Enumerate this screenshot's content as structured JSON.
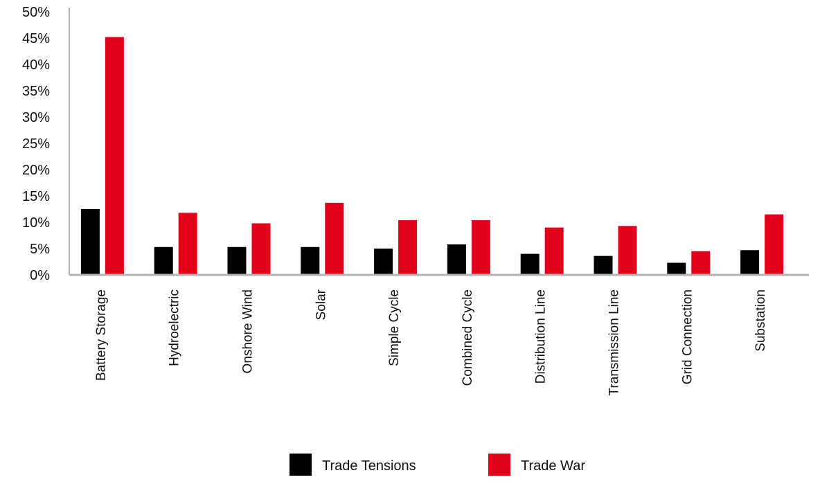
{
  "chart_data": {
    "type": "bar",
    "categories": [
      "Battery Storage",
      "Hydroelectric",
      "Onshore Wind",
      "Solar",
      "Simple Cycle",
      "Combined Cycle",
      "Distribution Line",
      "Transmission Line",
      "Grid Connection",
      "Substation"
    ],
    "series": [
      {
        "name": "Trade Tensions",
        "color": "#000000",
        "values": [
          12.5,
          5.3,
          5.3,
          5.3,
          5.0,
          5.8,
          4.0,
          3.6,
          2.3,
          4.7
        ]
      },
      {
        "name": "Trade War",
        "color": "#e3001b",
        "values": [
          45.2,
          11.8,
          9.8,
          13.7,
          10.4,
          10.4,
          9.0,
          9.3,
          4.5,
          11.5
        ]
      }
    ],
    "ylim": [
      0,
      50
    ],
    "yticks": [
      "0%",
      "5%",
      "10%",
      "15%",
      "20%",
      "25%",
      "30%",
      "35%",
      "40%",
      "45%",
      "50%"
    ],
    "grid": false,
    "legend_position": "bottom",
    "title": "",
    "xlabel": "",
    "ylabel": ""
  }
}
